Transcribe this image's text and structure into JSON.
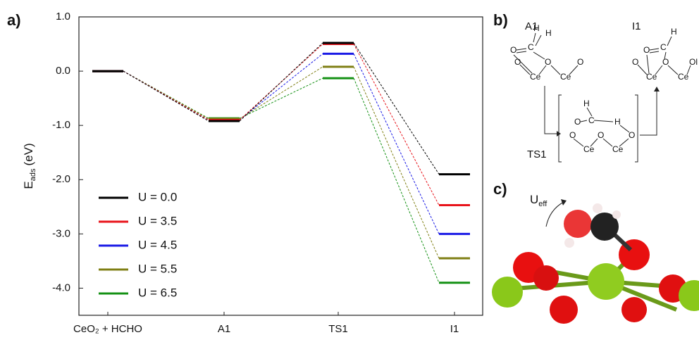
{
  "panels": {
    "a": "a)",
    "b": "b)",
    "c": "c)"
  },
  "chart_data": {
    "type": "energy-levels",
    "ylabel": {
      "main": "E",
      "sub": "ads",
      "unit": "(eV)"
    },
    "categories": [
      "CeO₂ + HCHO",
      "A1",
      "TS1",
      "I1"
    ],
    "ylim": [
      -4.5,
      1.0
    ],
    "yticks": [
      {
        "value": 1,
        "label": "1.0"
      },
      {
        "value": 0,
        "label": "0.0"
      },
      {
        "value": -1,
        "label": "-1.0"
      },
      {
        "value": -2,
        "label": "-2.0"
      },
      {
        "value": -3,
        "label": "-3.0"
      },
      {
        "value": -4,
        "label": "-4.0"
      }
    ],
    "grid": false,
    "legend": "lower-left",
    "series": [
      {
        "name": "U = 0.0",
        "color": "#000000",
        "values": [
          0,
          -0.92,
          0.52,
          -1.9
        ]
      },
      {
        "name": "U = 3.5",
        "color": "#e8141b",
        "values": [
          0,
          -0.9,
          0.5,
          -2.47
        ]
      },
      {
        "name": "U = 4.5",
        "color": "#1a1ae6",
        "values": [
          0,
          -0.9,
          0.32,
          -3.0
        ]
      },
      {
        "name": "U = 5.5",
        "color": "#7f7f14",
        "values": [
          0,
          -0.88,
          0.08,
          -3.45
        ]
      },
      {
        "name": "U = 6.5",
        "color": "#149114",
        "values": [
          0,
          -0.87,
          -0.13,
          -3.9
        ]
      }
    ]
  },
  "scheme": {
    "a1": "A1",
    "i1": "I1",
    "ts1": "TS1",
    "a1_atoms": [
      "H",
      "H",
      "O",
      "C",
      "O",
      "O",
      "O",
      "Ce",
      "Ce"
    ],
    "i1_atoms": [
      "H",
      "O",
      "C",
      "O",
      "O",
      "Ol",
      "Ce",
      "Ce"
    ],
    "ts1_atoms": [
      "H",
      "O",
      "C",
      "H",
      "O",
      "O",
      "O",
      "Ce",
      "Ce"
    ]
  },
  "render": {
    "label": {
      "main": "U",
      "sub": "eff"
    }
  }
}
